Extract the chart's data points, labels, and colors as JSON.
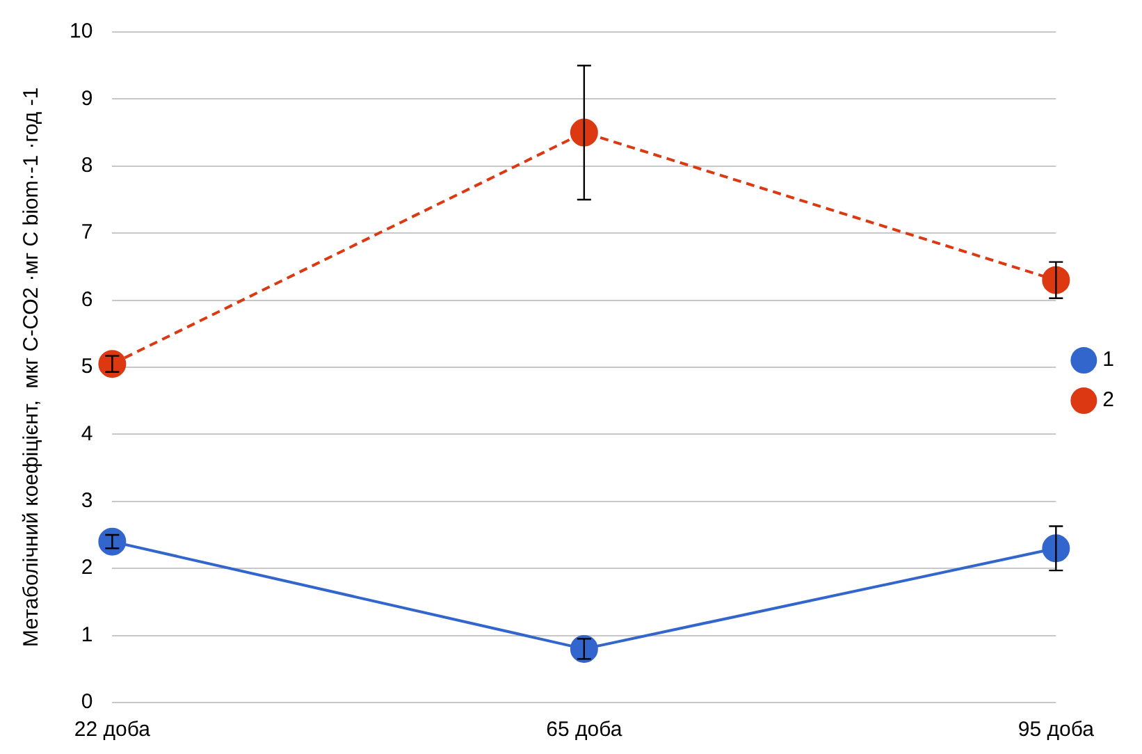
{
  "chart_data": {
    "type": "line",
    "ylabel": "Метаболічний коефіцієнт,  мкг С-СО2 ·мг С biom·-1 ·год -1",
    "categories": [
      "22 доба",
      "65 доба",
      "95 доба"
    ],
    "series": [
      {
        "name": "1",
        "color": "#3366cc",
        "line_style": "solid",
        "values": [
          2.4,
          0.8,
          2.3
        ],
        "errors": [
          0.1,
          0.15,
          0.33
        ]
      },
      {
        "name": "2",
        "color": "#dc3912",
        "line_style": "dashed",
        "values": [
          5.05,
          8.5,
          6.3
        ],
        "errors": [
          0.12,
          1.0,
          0.27
        ]
      }
    ],
    "ylim": [
      0,
      10
    ],
    "yticks": [
      0,
      1,
      2,
      3,
      4,
      5,
      6,
      7,
      8,
      9,
      10
    ],
    "grid": "y",
    "legend": "right",
    "marker": "circle"
  }
}
